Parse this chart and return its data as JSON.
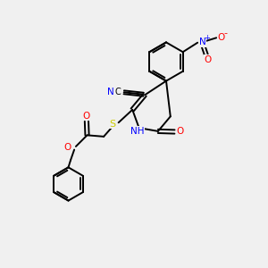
{
  "bg_color": "#f0f0f0",
  "bond_color": "#000000",
  "atom_colors": {
    "N": "#0000ff",
    "O": "#ff0000",
    "S": "#cccc00",
    "C": "#000000",
    "H": "#000000"
  },
  "figsize": [
    3.0,
    3.0
  ],
  "dpi": 100
}
